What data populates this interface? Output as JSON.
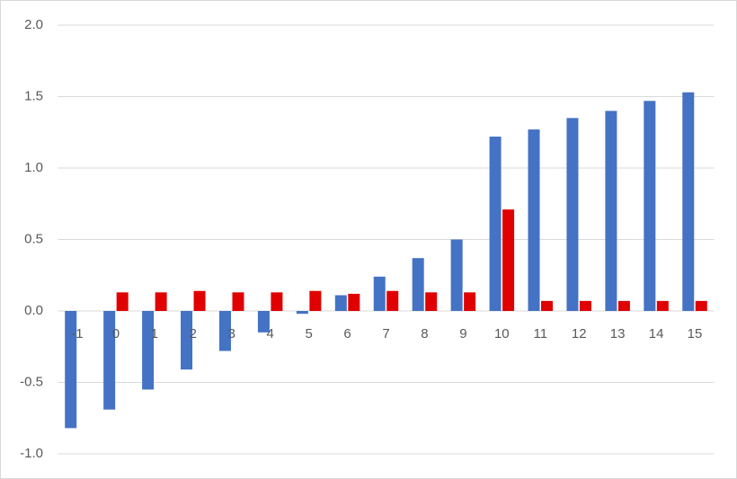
{
  "chart_data": {
    "type": "bar",
    "categories": [
      "-1",
      "0",
      "1",
      "2",
      "3",
      "4",
      "5",
      "6",
      "7",
      "8",
      "9",
      "10",
      "11",
      "12",
      "13",
      "14",
      "15"
    ],
    "series": [
      {
        "color": "#4472c4",
        "values": [
          -0.82,
          -0.69,
          -0.55,
          -0.41,
          -0.28,
          -0.15,
          -0.02,
          0.11,
          0.24,
          0.37,
          0.5,
          1.22,
          1.27,
          1.35,
          1.4,
          1.47,
          1.53
        ]
      },
      {
        "color": "#e00000",
        "values": [
          null,
          0.13,
          0.13,
          0.14,
          0.13,
          0.13,
          0.14,
          0.12,
          0.14,
          0.13,
          0.13,
          0.71,
          0.07,
          0.07,
          0.07,
          0.07,
          0.07
        ]
      }
    ],
    "ylim": [
      -1,
      2
    ],
    "yticks": [
      {
        "value": -1,
        "label": "-1.0"
      },
      -0.5,
      {
        "value": 0,
        "label": "0.0"
      },
      0.5,
      {
        "value": 1,
        "label": "1.0"
      },
      1.5,
      {
        "value": 2,
        "label": "2.0"
      }
    ],
    "grid": true
  }
}
